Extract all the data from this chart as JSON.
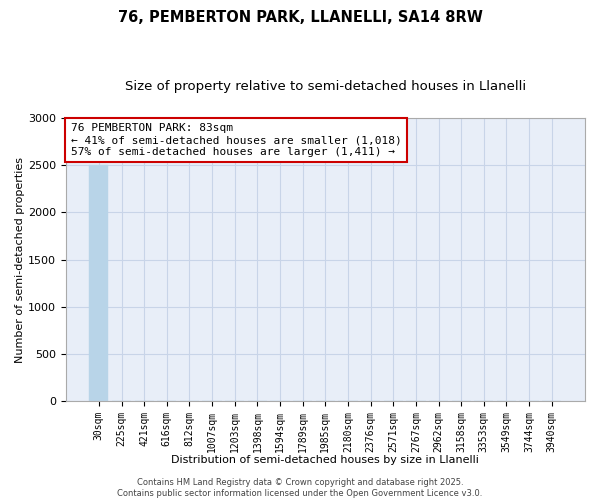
{
  "title_line1": "76, PEMBERTON PARK, LLANELLI, SA14 8RW",
  "title_line2": "Size of property relative to semi-detached houses in Llanelli",
  "xlabel": "Distribution of semi-detached houses by size in Llanelli",
  "ylabel": "Number of semi-detached properties",
  "footer": "Contains HM Land Registry data © Crown copyright and database right 2025.\nContains public sector information licensed under the Open Government Licence v3.0.",
  "annotation_title": "76 PEMBERTON PARK: 83sqm",
  "annotation_line2": "← 41% of semi-detached houses are smaller (1,018)",
  "annotation_line3": "57% of semi-detached houses are larger (1,411) →",
  "categories": [
    "30sqm",
    "225sqm",
    "421sqm",
    "616sqm",
    "812sqm",
    "1007sqm",
    "1203sqm",
    "1398sqm",
    "1594sqm",
    "1789sqm",
    "1985sqm",
    "2180sqm",
    "2376sqm",
    "2571sqm",
    "2767sqm",
    "2962sqm",
    "3158sqm",
    "3353sqm",
    "3549sqm",
    "3744sqm",
    "3940sqm"
  ],
  "values": [
    2500,
    0,
    0,
    0,
    0,
    0,
    0,
    0,
    0,
    0,
    0,
    0,
    0,
    0,
    0,
    0,
    0,
    0,
    0,
    0,
    0
  ],
  "bar_color": "#b8d4e8",
  "ylim": [
    0,
    3000
  ],
  "yticks": [
    0,
    500,
    1000,
    1500,
    2000,
    2500,
    3000
  ],
  "bg_color": "#e8eef8",
  "grid_color": "#c8d4e8",
  "annotation_box_color": "#cc0000",
  "title_fontsize": 10.5,
  "subtitle_fontsize": 9.5,
  "axis_label_fontsize": 8,
  "tick_fontsize": 7,
  "annotation_fontsize": 8,
  "footer_fontsize": 6
}
